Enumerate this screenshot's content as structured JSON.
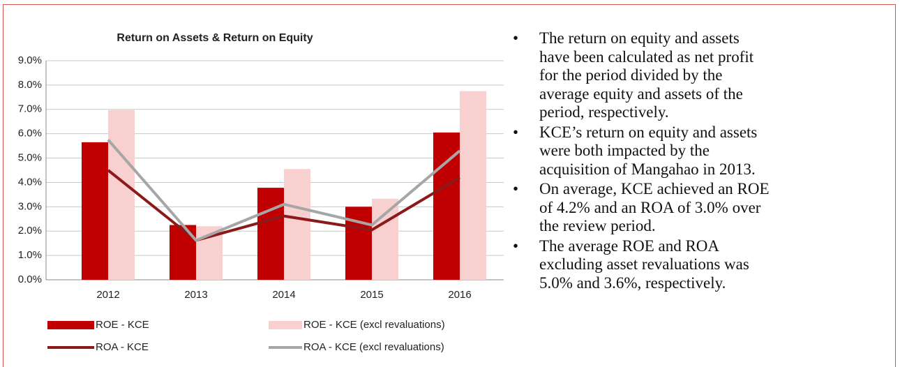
{
  "chart_data": {
    "type": "bar",
    "title": "Return on Assets & Return on Equity",
    "categories": [
      "2012",
      "2013",
      "2014",
      "2015",
      "2016"
    ],
    "series": [
      {
        "name": "ROE - KCE",
        "type": "bar",
        "color": "#c00000",
        "values": [
          5.65,
          2.25,
          3.78,
          3.0,
          6.05
        ]
      },
      {
        "name": "ROE - KCE (excl revaluations)",
        "type": "bar",
        "color": "#f9d0d0",
        "values": [
          6.97,
          2.2,
          4.55,
          3.33,
          7.75
        ]
      },
      {
        "name": "ROA - KCE",
        "type": "line",
        "color": "#8b1a1a",
        "values": [
          4.5,
          1.62,
          2.62,
          2.05,
          4.2
        ]
      },
      {
        "name": "ROA - KCE (excl revaluations)",
        "type": "line",
        "color": "#a6a6a6",
        "values": [
          5.75,
          1.62,
          3.1,
          2.25,
          5.3
        ]
      }
    ],
    "ylim": [
      0,
      9
    ],
    "yticks": [
      {
        "value": 0,
        "label": "0.0%"
      },
      {
        "value": 1,
        "label": "1.0%"
      },
      {
        "value": 2,
        "label": "2.0%"
      },
      {
        "value": 3,
        "label": "3.0%"
      },
      {
        "value": 4,
        "label": "4.0%"
      },
      {
        "value": 5,
        "label": "5.0%"
      },
      {
        "value": 6,
        "label": "6.0%"
      },
      {
        "value": 7,
        "label": "7.0%"
      },
      {
        "value": 8,
        "label": "8.0%"
      },
      {
        "value": 9,
        "label": "9.0%"
      }
    ],
    "grid": true
  },
  "bullets": [
    "The return on equity and assets have been calculated as net profit for the period divided by the average equity and assets of the period, respectively.",
    "KCE’s return on equity and assets were both impacted by the acquisition of Mangahao in 2013.",
    "On average, KCE achieved an ROE of 4.2% and an ROA of 3.0% over the review period.",
    "The average ROE and ROA excluding asset revaluations was 5.0% and 3.6%, respectively."
  ]
}
